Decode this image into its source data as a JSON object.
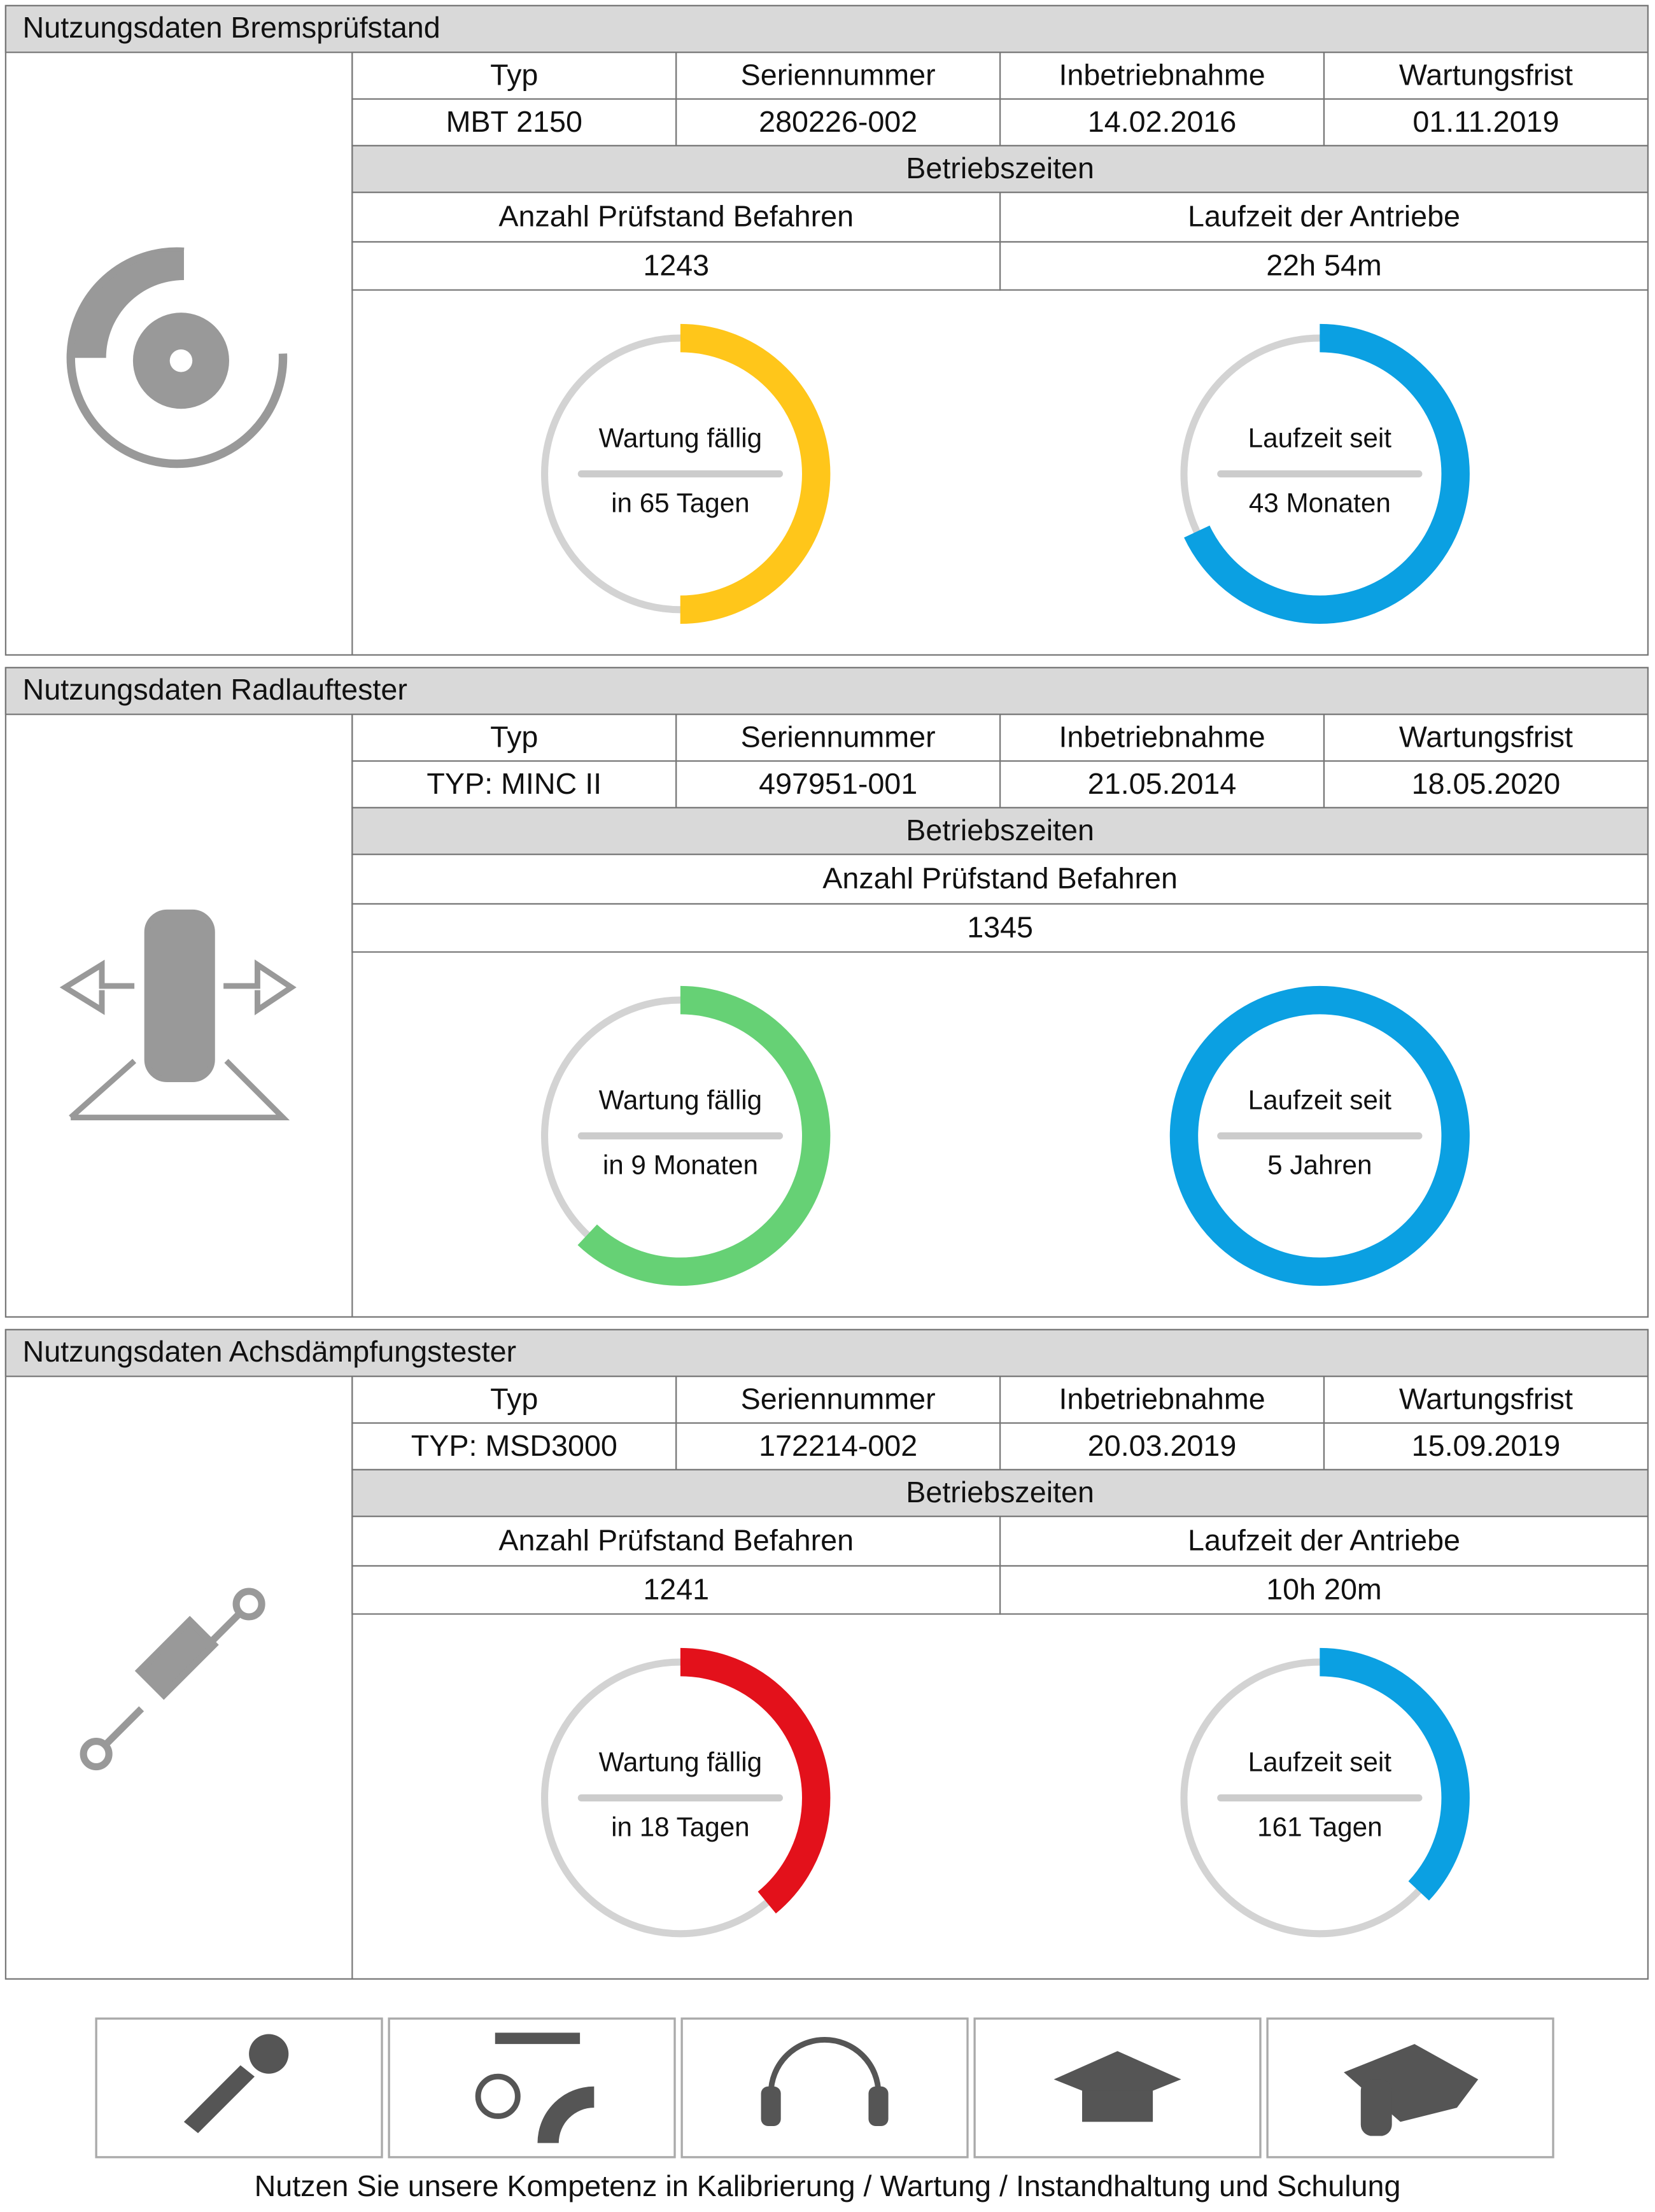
{
  "panels": [
    {
      "title": "Nutzungsdaten Bremsprüfstand",
      "table": {
        "headers": [
          "Typ",
          "Seriennummer",
          "Inbetriebnahme",
          "Wartungsfrist"
        ],
        "values": [
          "MBT 2150",
          "280226-002",
          "14.02.2016",
          "01.11.2019"
        ]
      },
      "section": "Betriebszeiten",
      "metrics": {
        "headers": [
          "Anzahl Prüfstand Befahren",
          "Laufzeit der Antriebe"
        ],
        "values": [
          "1243",
          "22h 54m"
        ]
      },
      "gauges": [
        {
          "label": "Wartung fällig",
          "value_text": "in 65 Tagen",
          "color": "#ffc61a",
          "progress": 50
        },
        {
          "label": "Laufzeit seit",
          "value_text": "43 Monaten",
          "color": "#0ba0e2",
          "progress": 68
        }
      ]
    },
    {
      "title": "Nutzungsdaten Radlauftester",
      "table": {
        "headers": [
          "Typ",
          "Seriennummer",
          "Inbetriebnahme",
          "Wartungsfrist"
        ],
        "values": [
          "TYP: MINC II",
          "497951-001",
          "21.05.2014",
          "18.05.2020"
        ]
      },
      "section": "Betriebszeiten",
      "metrics": {
        "headers": [
          "Anzahl Prüfstand Befahren"
        ],
        "values": [
          "1345"
        ]
      },
      "gauges": [
        {
          "label": "Wartung fällig",
          "value_text": "in 9 Monaten",
          "color": "#66d175",
          "progress": 62
        },
        {
          "label": "Laufzeit seit",
          "value_text": "5 Jahren",
          "color": "#0ba0e2",
          "progress": 100
        }
      ]
    },
    {
      "title": "Nutzungsdaten Achsdämpfungstester",
      "table": {
        "headers": [
          "Typ",
          "Seriennummer",
          "Inbetriebnahme",
          "Wartungsfrist"
        ],
        "values": [
          "TYP: MSD3000",
          "172214-002",
          "20.03.2019",
          "15.09.2019"
        ]
      },
      "section": "Betriebszeiten",
      "metrics": {
        "headers": [
          "Anzahl Prüfstand Befahren",
          "Laufzeit der Antriebe"
        ],
        "values": [
          "1241",
          "10h 20m"
        ]
      },
      "gauges": [
        {
          "label": "Wartung fällig",
          "value_text": "in 18 Tagen",
          "color": "#e3111b",
          "progress": 39
        },
        {
          "label": "Laufzeit seit",
          "value_text": "161 Tagen",
          "color": "#0ba0e2",
          "progress": 37
        }
      ]
    }
  ],
  "footer": {
    "text": "Nutzen Sie unsere Kompetenz in Kalibrierung / Wartung / Instandhaltung und Schulung"
  }
}
